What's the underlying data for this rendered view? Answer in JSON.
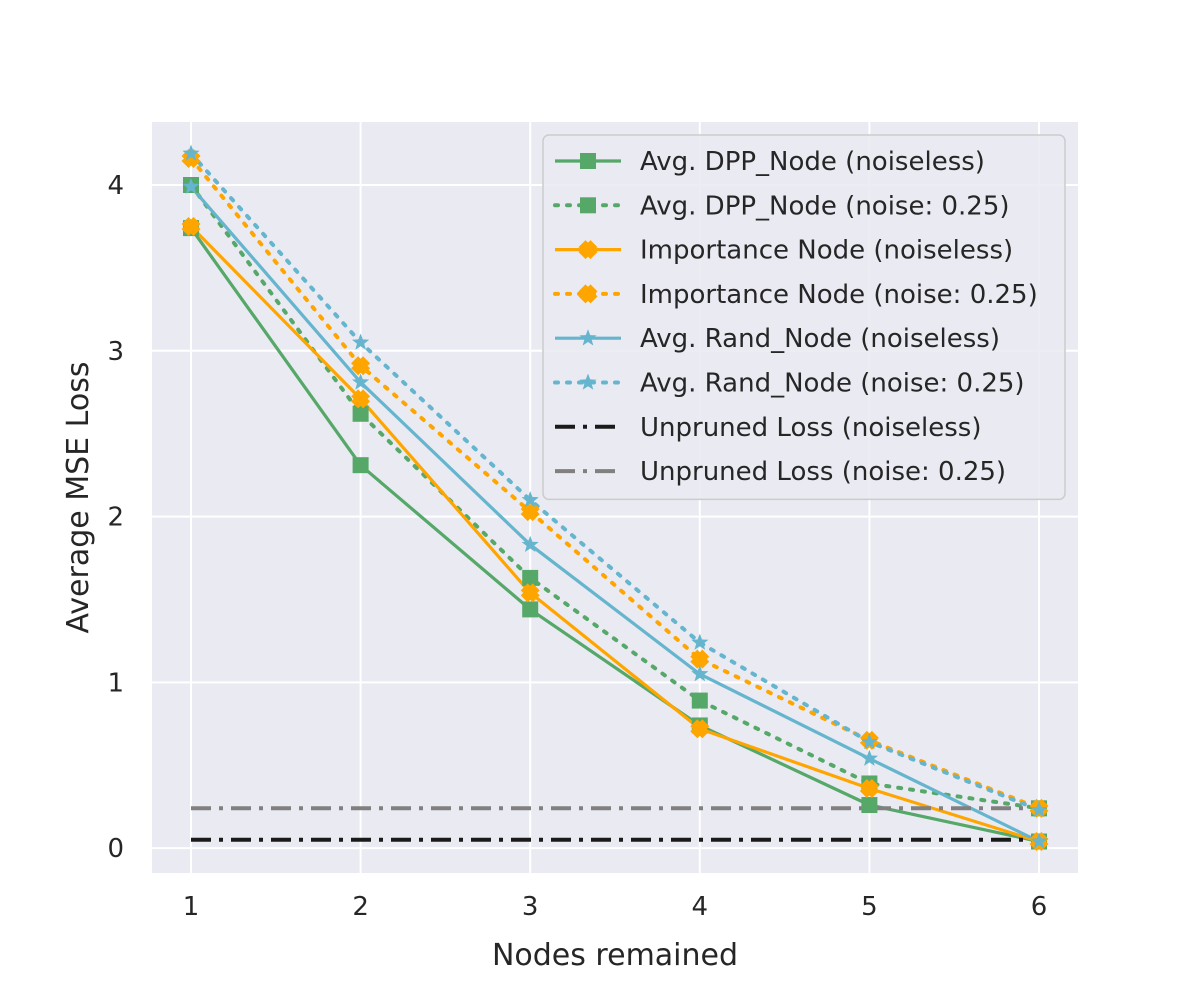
{
  "chart_data": {
    "type": "line",
    "xlabel": "Nodes remained",
    "ylabel": "Average MSE Loss",
    "x": [
      1,
      2,
      3,
      4,
      5,
      6
    ],
    "xlim": [
      0.77,
      6.23
    ],
    "ylim": [
      -0.15,
      4.38
    ],
    "xticks": [
      "1",
      "2",
      "3",
      "4",
      "5",
      "6"
    ],
    "yticks": [
      "0",
      "1",
      "2",
      "3",
      "4"
    ],
    "grid": true,
    "background": "#eaeaf2",
    "legend_position": "top-right",
    "series": [
      {
        "name": "Avg. DPP_Node (noiseless)",
        "values": [
          3.74,
          2.31,
          1.44,
          0.74,
          0.26,
          0.04
        ],
        "color": "#55a868",
        "dash": "solid",
        "marker": "square"
      },
      {
        "name": "Avg. DPP_Node (noise: 0.25)",
        "values": [
          4.0,
          2.62,
          1.63,
          0.89,
          0.39,
          0.24
        ],
        "color": "#55a868",
        "dash": "dotted",
        "marker": "square"
      },
      {
        "name": "Importance Node (noiseless)",
        "values": [
          3.75,
          2.71,
          1.54,
          0.72,
          0.36,
          0.04
        ],
        "color": "#ffa500",
        "dash": "solid",
        "marker": "x"
      },
      {
        "name": "Importance Node (noise: 0.25)",
        "values": [
          4.16,
          2.91,
          2.03,
          1.14,
          0.65,
          0.24
        ],
        "color": "#ffa500",
        "dash": "dotted",
        "marker": "x"
      },
      {
        "name": "Avg. Rand_Node (noiseless)",
        "values": [
          3.99,
          2.81,
          1.83,
          1.05,
          0.54,
          0.04
        ],
        "color": "#64b5cd",
        "dash": "solid",
        "marker": "star"
      },
      {
        "name": "Avg. Rand_Node (noise: 0.25)",
        "values": [
          4.19,
          3.05,
          2.1,
          1.24,
          0.64,
          0.23
        ],
        "color": "#64b5cd",
        "dash": "dotted",
        "marker": "star"
      },
      {
        "name": "Unpruned Loss (noiseless)",
        "values": [
          0.05,
          0.05,
          0.05,
          0.05,
          0.05,
          0.05
        ],
        "color": "#1a1a1a",
        "dash": "dashdot",
        "marker": "none"
      },
      {
        "name": "Unpruned Loss (noise: 0.25)",
        "values": [
          0.24,
          0.24,
          0.24,
          0.24,
          0.24,
          0.24
        ],
        "color": "#808080",
        "dash": "dashdot",
        "marker": "none"
      }
    ]
  }
}
